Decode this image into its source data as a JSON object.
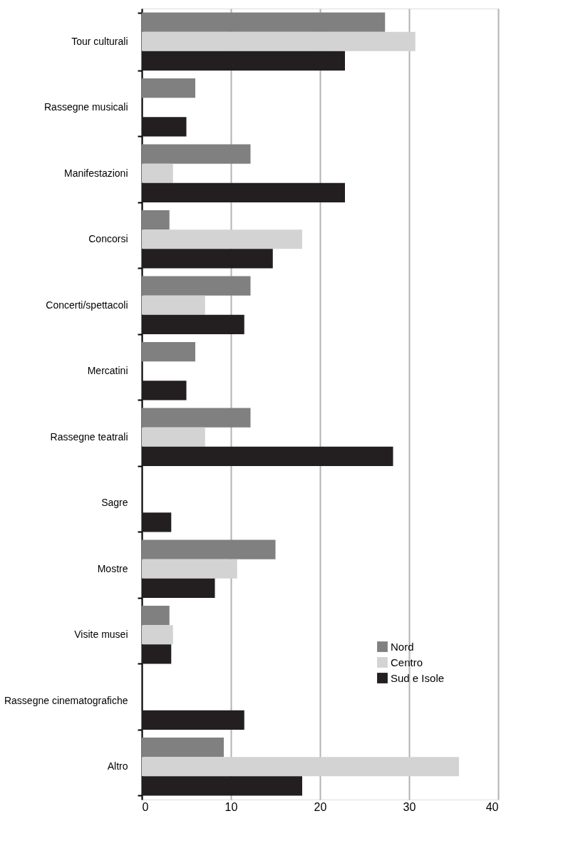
{
  "chart_data": {
    "type": "bar",
    "orientation": "horizontal",
    "categories": [
      "Tour culturali",
      "Rassegne musicali",
      "Manifestazioni",
      "Concorsi",
      "Concerti/spettacoli",
      "Mercatini",
      "Rassegne teatrali",
      "Sagre",
      "Mostre",
      "Visite musei",
      "Rassegne cinematografiche",
      "Altro"
    ],
    "series": [
      {
        "name": "Nord",
        "color": "#808080",
        "values": [
          27.3,
          6.0,
          12.2,
          3.1,
          12.2,
          6.0,
          12.2,
          0,
          15.0,
          3.1,
          0,
          9.2
        ]
      },
      {
        "name": "Centro",
        "color": "#d3d3d3",
        "values": [
          30.7,
          0,
          3.5,
          18.0,
          7.1,
          0,
          7.1,
          0,
          10.7,
          3.5,
          0,
          35.6
        ]
      },
      {
        "name": "Sud e Isole",
        "color": "#231f20",
        "values": [
          22.8,
          5.0,
          22.8,
          14.7,
          11.5,
          5.0,
          28.2,
          3.3,
          8.2,
          3.3,
          11.5,
          18.0
        ]
      }
    ],
    "xlim": [
      0,
      40
    ],
    "xticks": [
      0,
      10,
      20,
      30,
      40
    ],
    "grid": "x",
    "legend": "bottom right"
  }
}
